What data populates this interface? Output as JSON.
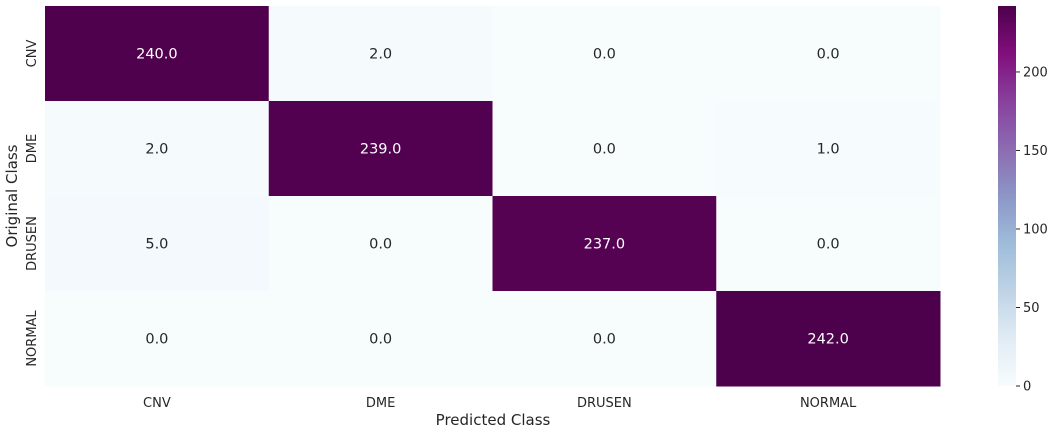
{
  "chart_data": {
    "type": "heatmap",
    "title": "",
    "xlabel": "Predicted Class",
    "ylabel": "Original Class",
    "x_categories": [
      "CNV",
      "DME",
      "DRUSEN",
      "NORMAL"
    ],
    "y_categories": [
      "CNV",
      "DME",
      "DRUSEN",
      "NORMAL"
    ],
    "matrix": [
      [
        240.0,
        2.0,
        0.0,
        0.0
      ],
      [
        2.0,
        239.0,
        0.0,
        1.0
      ],
      [
        5.0,
        0.0,
        237.0,
        0.0
      ],
      [
        0.0,
        0.0,
        0.0,
        242.0
      ]
    ],
    "value_format": "0.0",
    "colormap": "BuPu",
    "vmin": 0,
    "vmax": 242,
    "colorbar": {
      "ticks": [
        0,
        50,
        100,
        150,
        200
      ],
      "tick_labels": [
        "0",
        "50",
        "100",
        "150",
        "200"
      ]
    },
    "colors": {
      "low": "#f7fcfd",
      "high": "#4d004b",
      "text_dark": "#262626",
      "text_light": "#ffffff"
    }
  }
}
